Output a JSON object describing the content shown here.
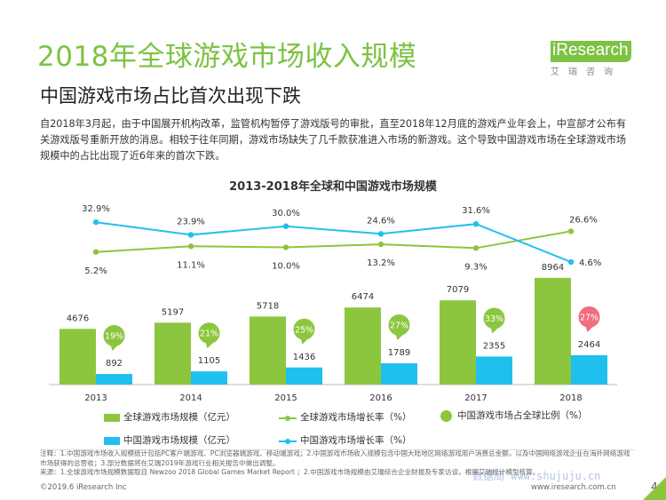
{
  "header": {
    "title": "2018年全球游戏市场收入规模",
    "subtitle": "中国游戏市场占比首次出现下跌",
    "intro": "自2018年3月起，由于中国展开机构改革，监管机构暂停了游戏版号的审批，直至2018年12月底的游戏产业年会上，中宣部才公布有关游戏版号重新开放的消息。相较于往年同期，游戏市场缺失了几千款获准进入市场的新游戏。这个导致中国游戏市场在全球游戏市场规模中的占比出现了近6年来的首次下跌。"
  },
  "logo": {
    "text": "iResearch",
    "cn": "艾瑞咨询",
    "color": "#7dc242"
  },
  "colors": {
    "green": "#8cc63f",
    "blue": "#20c0ee",
    "bubble": "#8cc63f",
    "bubble_2018": "#f26d7d",
    "axis": "#bbbbbb"
  },
  "chart_data": {
    "type": "bar",
    "title": "2013-2018年全球和中国游戏市场规模",
    "categories": [
      "2013",
      "2014",
      "2015",
      "2016",
      "2017",
      "2018"
    ],
    "series": [
      {
        "name": "全球游戏市场规模（亿元）",
        "kind": "bar",
        "values": [
          4676,
          5197,
          5718,
          6474,
          7079,
          8964
        ]
      },
      {
        "name": "中国游戏市场规模（亿元）",
        "kind": "bar",
        "values": [
          892,
          1105,
          1436,
          1789,
          2355,
          2464
        ]
      },
      {
        "name": "全球游戏市场增长率（%）",
        "kind": "line",
        "values": [
          5.2,
          11.1,
          10.0,
          13.2,
          9.3,
          26.6
        ],
        "labels": [
          "5.2%",
          "11.1%",
          "10.0%",
          "13.2%",
          "9.3%",
          "26.6%"
        ]
      },
      {
        "name": "中国游戏市场增长率（%）",
        "kind": "line",
        "values": [
          32.9,
          23.9,
          30.0,
          24.6,
          31.6,
          4.6
        ],
        "labels": [
          "32.9%",
          "23.9%",
          "30.0%",
          "24.6%",
          "31.6%",
          "4.6%"
        ]
      },
      {
        "name": "中国游戏市场占全球比例（%）",
        "kind": "bubble",
        "values": [
          19,
          21,
          25,
          27,
          33,
          27
        ],
        "labels": [
          "19%",
          "21%",
          "25%",
          "27%",
          "33%",
          "27%"
        ]
      }
    ],
    "legend_position": "bottom",
    "grid": false
  },
  "notes": {
    "line1": "注释：1.中国游戏市场收入规模统计包括PC客户端游戏、PC浏览器端游戏、移动端游戏；2.中国游戏市场收入规模包含中国大陆地区网络游戏用户消费总金额，以及中国网络游戏企业在海外网络游戏市场获得的总营收；3.部分数据将在艾瑞2019年游戏行业相关报告中做出调整。",
    "line2": "来源：1.全球游戏市场规模数据取自 Newzoo 2018 Global Games Market Report ；2.中国游戏市场规模由艾瑞综合企业财报及专家访谈，根据艾瑞统计模型核算。"
  },
  "footer": {
    "copyright": "©2019.6 iResearch Inc",
    "url": "www.iresearch.com.cn",
    "watermark": "数据局 www.shujuju.cn",
    "page": "4"
  }
}
